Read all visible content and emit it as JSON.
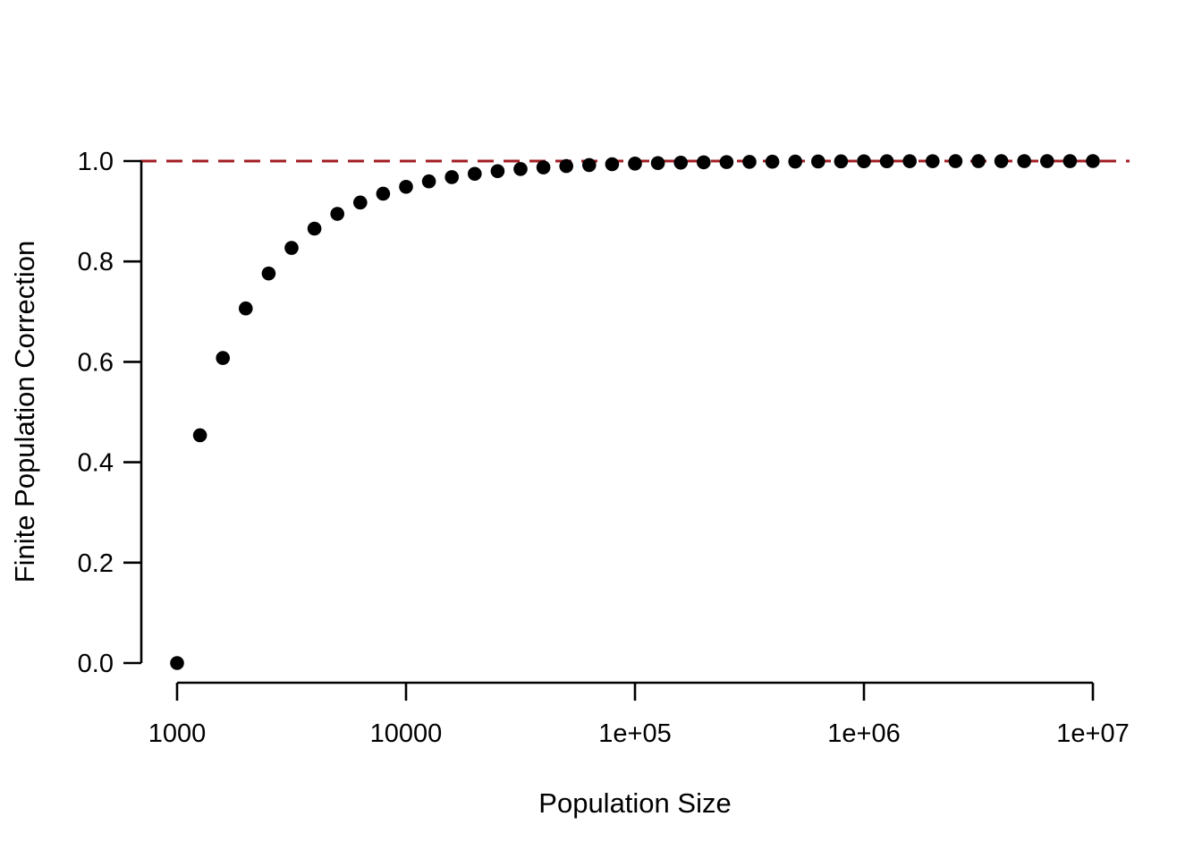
{
  "page": {
    "background": "#ffffff"
  },
  "chart_data": {
    "type": "scatter",
    "title": "",
    "xlabel": "Population Size",
    "ylabel": "Finite Population Correction",
    "x_scale": "log10",
    "xlim": [
      1000,
      10000000
    ],
    "ylim": [
      0.0,
      1.0
    ],
    "grid": false,
    "legend_position": "none",
    "point_color": "#000000",
    "axis_color": "#000000",
    "x_ticks": [
      {
        "value": 1000,
        "label": "1000"
      },
      {
        "value": 10000,
        "label": "10000"
      },
      {
        "value": 100000,
        "label": "1e+05"
      },
      {
        "value": 1000000,
        "label": "1e+06"
      },
      {
        "value": 10000000,
        "label": "1e+07"
      }
    ],
    "y_ticks": [
      {
        "value": 0.0,
        "label": "0.0"
      },
      {
        "value": 0.2,
        "label": "0.2"
      },
      {
        "value": 0.4,
        "label": "0.4"
      },
      {
        "value": 0.6,
        "label": "0.6"
      },
      {
        "value": 0.8,
        "label": "0.8"
      },
      {
        "value": 1.0,
        "label": "1.0"
      }
    ],
    "reference_line": {
      "y": 1.0,
      "style": "dashed",
      "color": "#a01c22"
    },
    "series": [
      {
        "name": "finite-population-correction",
        "points": [
          [
            1000,
            0.0
          ],
          [
            1259,
            0.4537
          ],
          [
            1585,
            0.6077
          ],
          [
            1995,
            0.7064
          ],
          [
            2512,
            0.776
          ],
          [
            3162,
            0.827
          ],
          [
            3981,
            0.8654
          ],
          [
            5012,
            0.8948
          ],
          [
            6310,
            0.9174
          ],
          [
            7943,
            0.935
          ],
          [
            10000,
            0.9487
          ],
          [
            12589,
            0.9595
          ],
          [
            15849,
            0.968
          ],
          [
            19953,
            0.9746
          ],
          [
            25119,
            0.9799
          ],
          [
            31623,
            0.9841
          ],
          [
            39811,
            0.9874
          ],
          [
            50119,
            0.99
          ],
          [
            63096,
            0.9921
          ],
          [
            79433,
            0.9937
          ],
          [
            100000,
            0.995
          ],
          [
            125893,
            0.996
          ],
          [
            158489,
            0.9968
          ],
          [
            199526,
            0.9975
          ],
          [
            251189,
            0.998
          ],
          [
            316228,
            0.9984
          ],
          [
            398107,
            0.9987
          ],
          [
            501187,
            0.999
          ],
          [
            630957,
            0.9992
          ],
          [
            794328,
            0.9994
          ],
          [
            1000000,
            0.9995
          ],
          [
            1258925,
            0.9996
          ],
          [
            1584893,
            0.9997
          ],
          [
            1995262,
            0.9997
          ],
          [
            2511886,
            0.9998
          ],
          [
            3162278,
            0.9998
          ],
          [
            3981072,
            0.9999
          ],
          [
            5011872,
            0.9999
          ],
          [
            6309573,
            0.9999
          ],
          [
            7943282,
            0.9999
          ],
          [
            10000000,
            1.0
          ]
        ]
      }
    ]
  }
}
